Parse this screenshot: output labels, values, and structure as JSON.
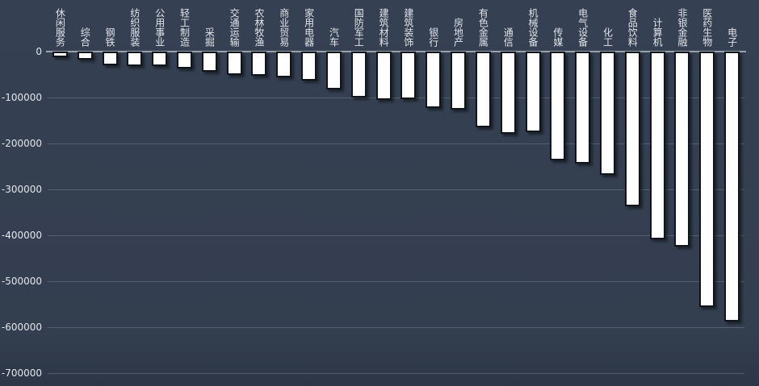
{
  "chart_data": {
    "type": "bar",
    "title": "",
    "xlabel": "",
    "ylabel": "",
    "categories": [
      "休闲服务",
      "综合",
      "钢铁",
      "纺织服装",
      "公用事业",
      "轻工制造",
      "采掘",
      "交通运输",
      "农林牧渔",
      "商业贸易",
      "家用电器",
      "汽车",
      "国防军工",
      "建筑材料",
      "建筑装饰",
      "银行",
      "房地产",
      "有色金属",
      "通信",
      "机械设备",
      "传媒",
      "电气设备",
      "化工",
      "食品饮料",
      "计算机",
      "非银金融",
      "医药生物",
      "电子"
    ],
    "values": [
      -12000,
      -18000,
      -29000,
      -31000,
      -32000,
      -37000,
      -44000,
      -50000,
      -52000,
      -57000,
      -63000,
      -82000,
      -100000,
      -105000,
      -104000,
      -123000,
      -126000,
      -165000,
      -179000,
      -176000,
      -236000,
      -243000,
      -268000,
      -337000,
      -408000,
      -425000,
      -557000,
      -587000
    ],
    "ylim": [
      -700000,
      0
    ],
    "yticks": [
      0,
      -100000,
      -200000,
      -300000,
      -400000,
      -500000,
      -600000,
      -700000
    ],
    "ytick_labels": [
      "0",
      "-100000",
      "-200000",
      "-300000",
      "-400000",
      "-500000",
      "-600000",
      "-700000"
    ],
    "grid": true,
    "legend": false,
    "bar_color": "#ffffff",
    "bar_border_color": "#10151c",
    "background_color": "#333e4f",
    "axis_line_color": "#99a1ab",
    "gridline_color": "#46515f",
    "text_color": "#e3e6ea"
  }
}
